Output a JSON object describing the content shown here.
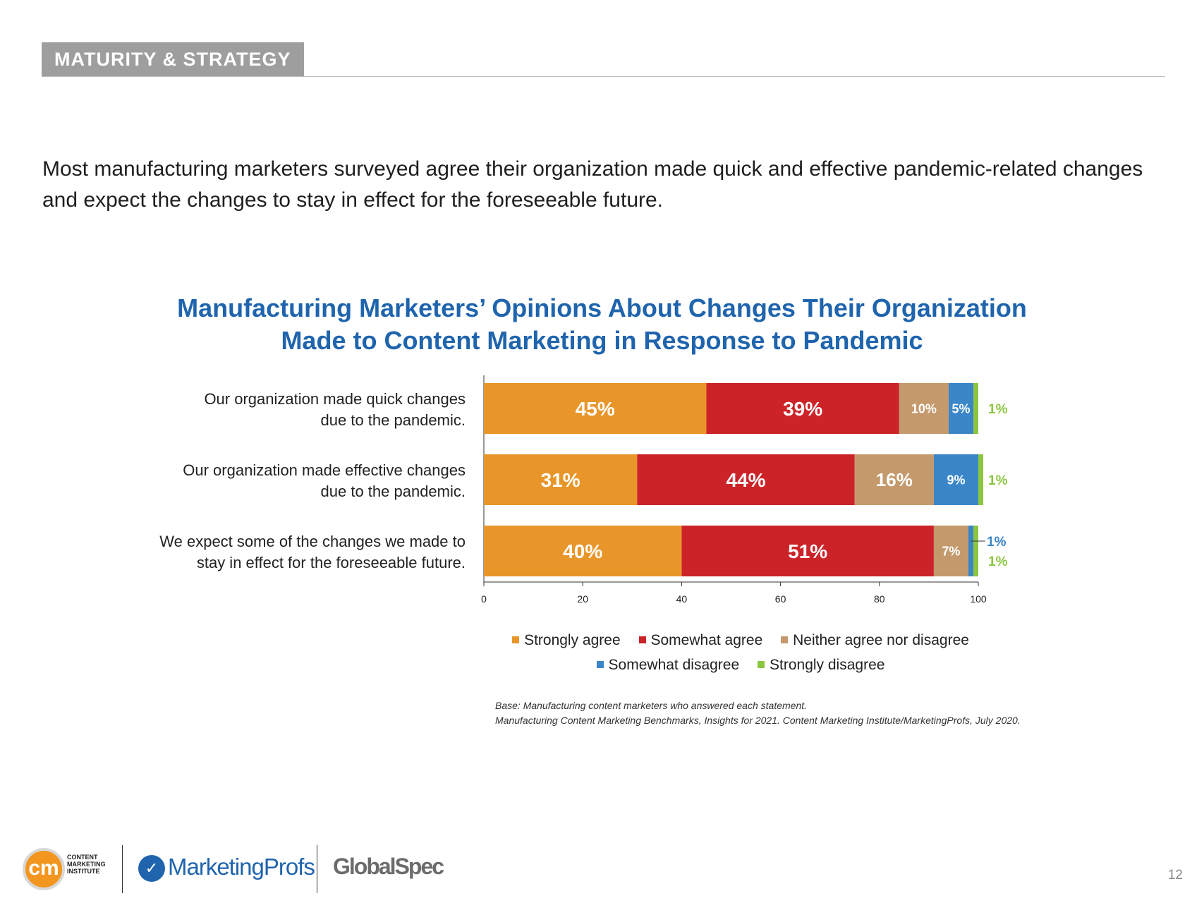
{
  "header": {
    "section_label": "MATURITY & STRATEGY",
    "intro_line1": "Most manufacturing marketers surveyed agree their organization made quick and effective pandemic-related changes",
    "intro_line2": "and expect the changes to stay in effect for the foreseeable future."
  },
  "chart_data": {
    "type": "bar",
    "orientation": "horizontal",
    "stacked": true,
    "title_line1": "Manufacturing Marketers’ Opinions About Changes Their Organization",
    "title_line2": "Made to Content Marketing in Response to Pandemic",
    "categories": [
      [
        "Our organization made quick changes",
        "due to the pandemic."
      ],
      [
        "Our organization made effective changes",
        "due to the pandemic."
      ],
      [
        "We expect some of the changes we made to",
        "stay in effect for the foreseeable future."
      ]
    ],
    "series": [
      {
        "name": "Strongly agree",
        "color": "#e8962a",
        "values": [
          45,
          31,
          40
        ]
      },
      {
        "name": "Somewhat agree",
        "color": "#cc2329",
        "values": [
          39,
          44,
          51
        ]
      },
      {
        "name": "Neither agree nor disagree",
        "color": "#c49a6c",
        "values": [
          10,
          16,
          7
        ]
      },
      {
        "name": "Somewhat disagree",
        "color": "#3a86c8",
        "values": [
          5,
          9,
          1
        ]
      },
      {
        "name": "Strongly disagree",
        "color": "#8cc63f",
        "values": [
          1,
          1,
          1
        ]
      }
    ],
    "xlim": [
      0,
      100
    ],
    "xticks": [
      0,
      20,
      40,
      60,
      80,
      100
    ],
    "value_suffix": "%",
    "legend_position": "bottom"
  },
  "source": {
    "line1": "Base: Manufacturing content marketers who answered each statement.",
    "line2": "Manufacturing Content Marketing Benchmarks, Insights for 2021. Content Marketing Institute/MarketingProfs, July 2020."
  },
  "footer": {
    "cmi_logo_text": "cm",
    "cmi_name_line1": "CONTENT",
    "cmi_name_line2": "MARKETING",
    "cmi_name_line3": "INSTITUTE",
    "marketingprofs_label": "MarketingProfs",
    "globalspec_label": "GlobalSpec",
    "page_number": "12"
  }
}
